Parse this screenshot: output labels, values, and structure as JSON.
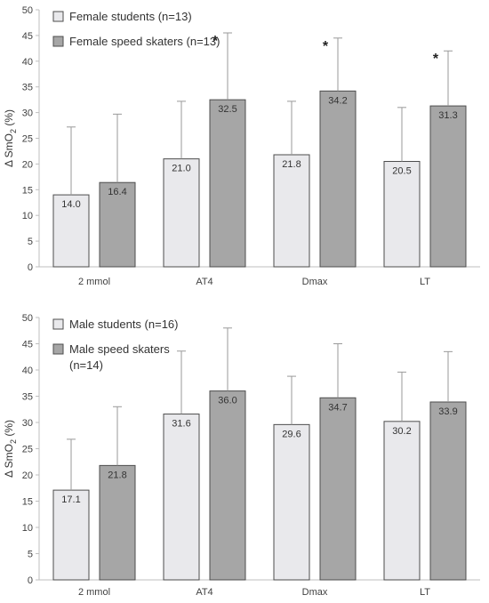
{
  "chart_data": [
    {
      "type": "bar",
      "categories": [
        "2 mmol",
        "AT4",
        "Dmax",
        "LT"
      ],
      "ylabel_main": "Δ SmO",
      "ylabel_sub": "2",
      "ylabel_tail": " (%)",
      "ylim": [
        0,
        50
      ],
      "yticks": [
        "0",
        "5",
        "10",
        "15",
        "20",
        "25",
        "30",
        "35",
        "40",
        "45",
        "50"
      ],
      "legend_position": "top-left",
      "series": [
        {
          "name": "Female students (n=13)",
          "color": "#e9e9ec",
          "values": [
            14.0,
            21.0,
            21.8,
            20.5
          ],
          "labels": [
            "14.0",
            "21.0",
            "21.8",
            "20.5"
          ],
          "err_top": [
            27.2,
            32.2,
            32.2,
            31.0
          ]
        },
        {
          "name": "Female speed skaters (n=13)",
          "color": "#a6a6a6",
          "values": [
            16.4,
            32.5,
            34.2,
            31.3
          ],
          "labels": [
            "16.4",
            "32.5",
            "34.2",
            "31.3"
          ],
          "err_top": [
            29.7,
            45.5,
            44.5,
            42.0
          ]
        }
      ],
      "significance": [
        "",
        "*",
        "*",
        "*"
      ]
    },
    {
      "type": "bar",
      "categories": [
        "2 mmol",
        "AT4",
        "Dmax",
        "LT"
      ],
      "ylabel_main": "Δ SmO",
      "ylabel_sub": "2",
      "ylabel_tail": " (%)",
      "ylim": [
        0,
        50
      ],
      "yticks": [
        "0",
        "5",
        "10",
        "15",
        "20",
        "25",
        "30",
        "35",
        "40",
        "45",
        "50"
      ],
      "legend_position": "top-left",
      "series": [
        {
          "name": "Male students (n=16)",
          "color": "#e9e9ec",
          "values": [
            17.1,
            31.6,
            29.6,
            30.2
          ],
          "labels": [
            "17.1",
            "31.6",
            "29.6",
            "30.2"
          ],
          "err_top": [
            26.8,
            43.6,
            38.8,
            39.6
          ]
        },
        {
          "name": "Male speed skaters (n=14)",
          "name_lines": [
            "Male speed skaters",
            "(n=14)"
          ],
          "color": "#a6a6a6",
          "values": [
            21.8,
            36.0,
            34.7,
            33.9
          ],
          "labels": [
            "21.8",
            "36.0",
            "34.7",
            "33.9"
          ],
          "err_top": [
            33.0,
            48.0,
            45.0,
            43.5
          ]
        }
      ],
      "significance": [
        "",
        "",
        "",
        ""
      ]
    }
  ]
}
